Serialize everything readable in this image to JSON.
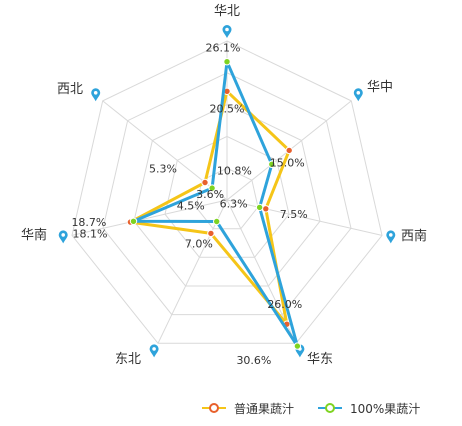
{
  "chart_data": {
    "type": "radar",
    "categories": [
      "华北",
      "华中",
      "西南",
      "华东",
      "东北",
      "华南",
      "西北"
    ],
    "rmax": 30,
    "grid_rings": 5,
    "series": [
      {
        "name": "普通果蔬汁",
        "values": [
          20.5,
          15.0,
          7.5,
          26.0,
          7.0,
          18.7,
          5.3
        ],
        "labels": [
          "20.5%",
          "15.0%",
          "7.5%",
          "26.0%",
          "7.0%",
          "18.7%",
          "5.3%"
        ],
        "color": "#F5C518",
        "marker_color": "#E8602C"
      },
      {
        "name": "100%果蔬汁",
        "values": [
          26.1,
          10.8,
          6.3,
          30.6,
          4.5,
          18.1,
          3.6
        ],
        "labels": [
          "26.1%",
          "10.8%",
          "6.3%",
          "30.6%",
          "4.5%",
          "18.1%",
          "3.6%"
        ],
        "color": "#2EA3DB",
        "marker_color": "#7ED321"
      }
    ],
    "pin_icon": "location-pin-icon",
    "grid_color": "#d9d9d9",
    "legend_position": "bottom-right"
  }
}
